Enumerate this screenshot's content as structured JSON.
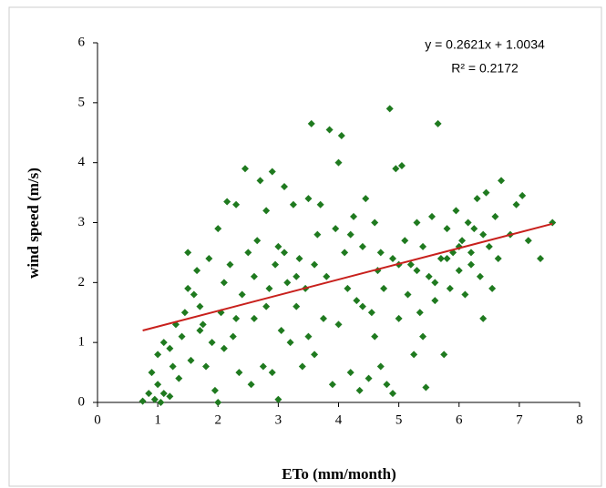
{
  "chart_data": {
    "type": "scatter",
    "x_label": "ETo (mm/month)",
    "y_label": "wind speed (m/s)",
    "annotations": [
      "y = 0.2621x + 1.0034",
      "R² = 0.2172"
    ],
    "xlim": [
      0,
      8
    ],
    "xticks": [
      0,
      1,
      2,
      3,
      4,
      5,
      6,
      7,
      8
    ],
    "ylim": [
      0,
      6
    ],
    "yticks": [
      0,
      1,
      2,
      3,
      4,
      5,
      6
    ],
    "color": "#1f7a1f",
    "x": [
      0.75,
      0.85,
      0.95,
      1.0,
      1.05,
      1.1,
      0.9,
      1.0,
      1.1,
      1.2,
      1.25,
      1.3,
      1.35,
      1.4,
      1.45,
      1.5,
      1.55,
      1.6,
      1.65,
      1.7,
      1.75,
      1.8,
      1.85,
      1.9,
      1.95,
      2.0,
      2.0,
      2.05,
      2.1,
      2.15,
      2.2,
      2.25,
      2.3,
      2.35,
      2.4,
      2.45,
      2.5,
      2.55,
      2.6,
      2.65,
      2.7,
      2.75,
      2.8,
      2.85,
      2.9,
      2.95,
      3.0,
      3.0,
      3.05,
      3.1,
      3.15,
      3.2,
      3.25,
      3.3,
      3.35,
      3.4,
      3.45,
      3.5,
      3.55,
      3.6,
      3.65,
      3.7,
      3.75,
      3.8,
      3.85,
      3.9,
      3.95,
      4.0,
      4.0,
      4.05,
      4.1,
      4.15,
      4.2,
      4.25,
      4.3,
      4.35,
      4.4,
      4.45,
      4.5,
      4.55,
      4.6,
      4.65,
      4.7,
      4.75,
      4.8,
      4.85,
      4.9,
      4.9,
      4.95,
      5.0,
      5.05,
      5.1,
      5.15,
      5.2,
      5.25,
      5.3,
      5.35,
      5.4,
      5.45,
      5.5,
      5.55,
      5.6,
      5.65,
      5.7,
      5.75,
      5.8,
      5.85,
      5.9,
      5.95,
      6.0,
      6.05,
      6.1,
      6.15,
      6.2,
      6.25,
      6.3,
      6.35,
      6.4,
      6.45,
      6.5,
      6.55,
      6.6,
      6.65,
      6.7,
      6.85,
      6.95,
      7.05,
      7.15,
      7.35,
      7.55,
      1.5,
      1.7,
      2.1,
      2.3,
      2.6,
      2.8,
      3.1,
      3.3,
      3.6,
      4.2,
      4.4,
      4.7,
      5.0,
      5.3,
      5.6,
      5.8,
      6.0,
      6.2,
      6.4,
      2.9,
      3.5,
      4.6,
      5.4,
      1.2
    ],
    "values": [
      0.02,
      0.15,
      0.05,
      0.3,
      0.0,
      0.15,
      0.5,
      0.8,
      1.0,
      0.9,
      0.6,
      1.3,
      0.4,
      1.1,
      1.5,
      2.5,
      0.7,
      1.8,
      2.2,
      1.6,
      1.3,
      0.6,
      2.4,
      1.0,
      0.2,
      0.0,
      2.9,
      1.5,
      0.9,
      3.35,
      2.3,
      1.1,
      3.3,
      0.5,
      1.8,
      3.9,
      2.5,
      0.3,
      1.4,
      2.7,
      3.7,
      0.6,
      3.2,
      1.9,
      3.85,
      2.3,
      0.05,
      2.6,
      1.2,
      3.6,
      2.0,
      1.0,
      3.3,
      1.6,
      2.4,
      0.6,
      1.9,
      3.4,
      4.65,
      0.8,
      2.8,
      3.3,
      1.4,
      2.1,
      4.55,
      0.3,
      2.9,
      4.0,
      1.3,
      4.45,
      2.5,
      1.9,
      0.5,
      3.1,
      1.7,
      0.2,
      2.6,
      3.4,
      0.4,
      1.5,
      3.0,
      2.2,
      0.6,
      1.9,
      0.3,
      4.9,
      0.15,
      2.4,
      3.9,
      1.4,
      3.95,
      2.7,
      1.8,
      2.3,
      0.8,
      3.0,
      1.5,
      2.6,
      0.25,
      2.1,
      3.1,
      1.7,
      4.65,
      2.4,
      0.8,
      2.9,
      1.9,
      2.5,
      3.2,
      2.2,
      2.7,
      1.8,
      3.0,
      2.5,
      2.9,
      3.4,
      2.1,
      1.4,
      3.5,
      2.6,
      1.9,
      3.1,
      2.4,
      3.7,
      2.8,
      3.3,
      3.45,
      2.7,
      2.4,
      3.0,
      1.9,
      1.2,
      2.0,
      1.4,
      2.1,
      1.6,
      2.5,
      2.1,
      2.3,
      2.8,
      1.6,
      2.5,
      2.3,
      2.2,
      2.0,
      2.4,
      2.6,
      2.3,
      2.8,
      0.5,
      1.1,
      1.1,
      1.1,
      0.1
    ],
    "trendline": {
      "color": "#c8201c",
      "x": [
        0.75,
        7.55
      ],
      "y": [
        1.2,
        2.98
      ]
    }
  }
}
